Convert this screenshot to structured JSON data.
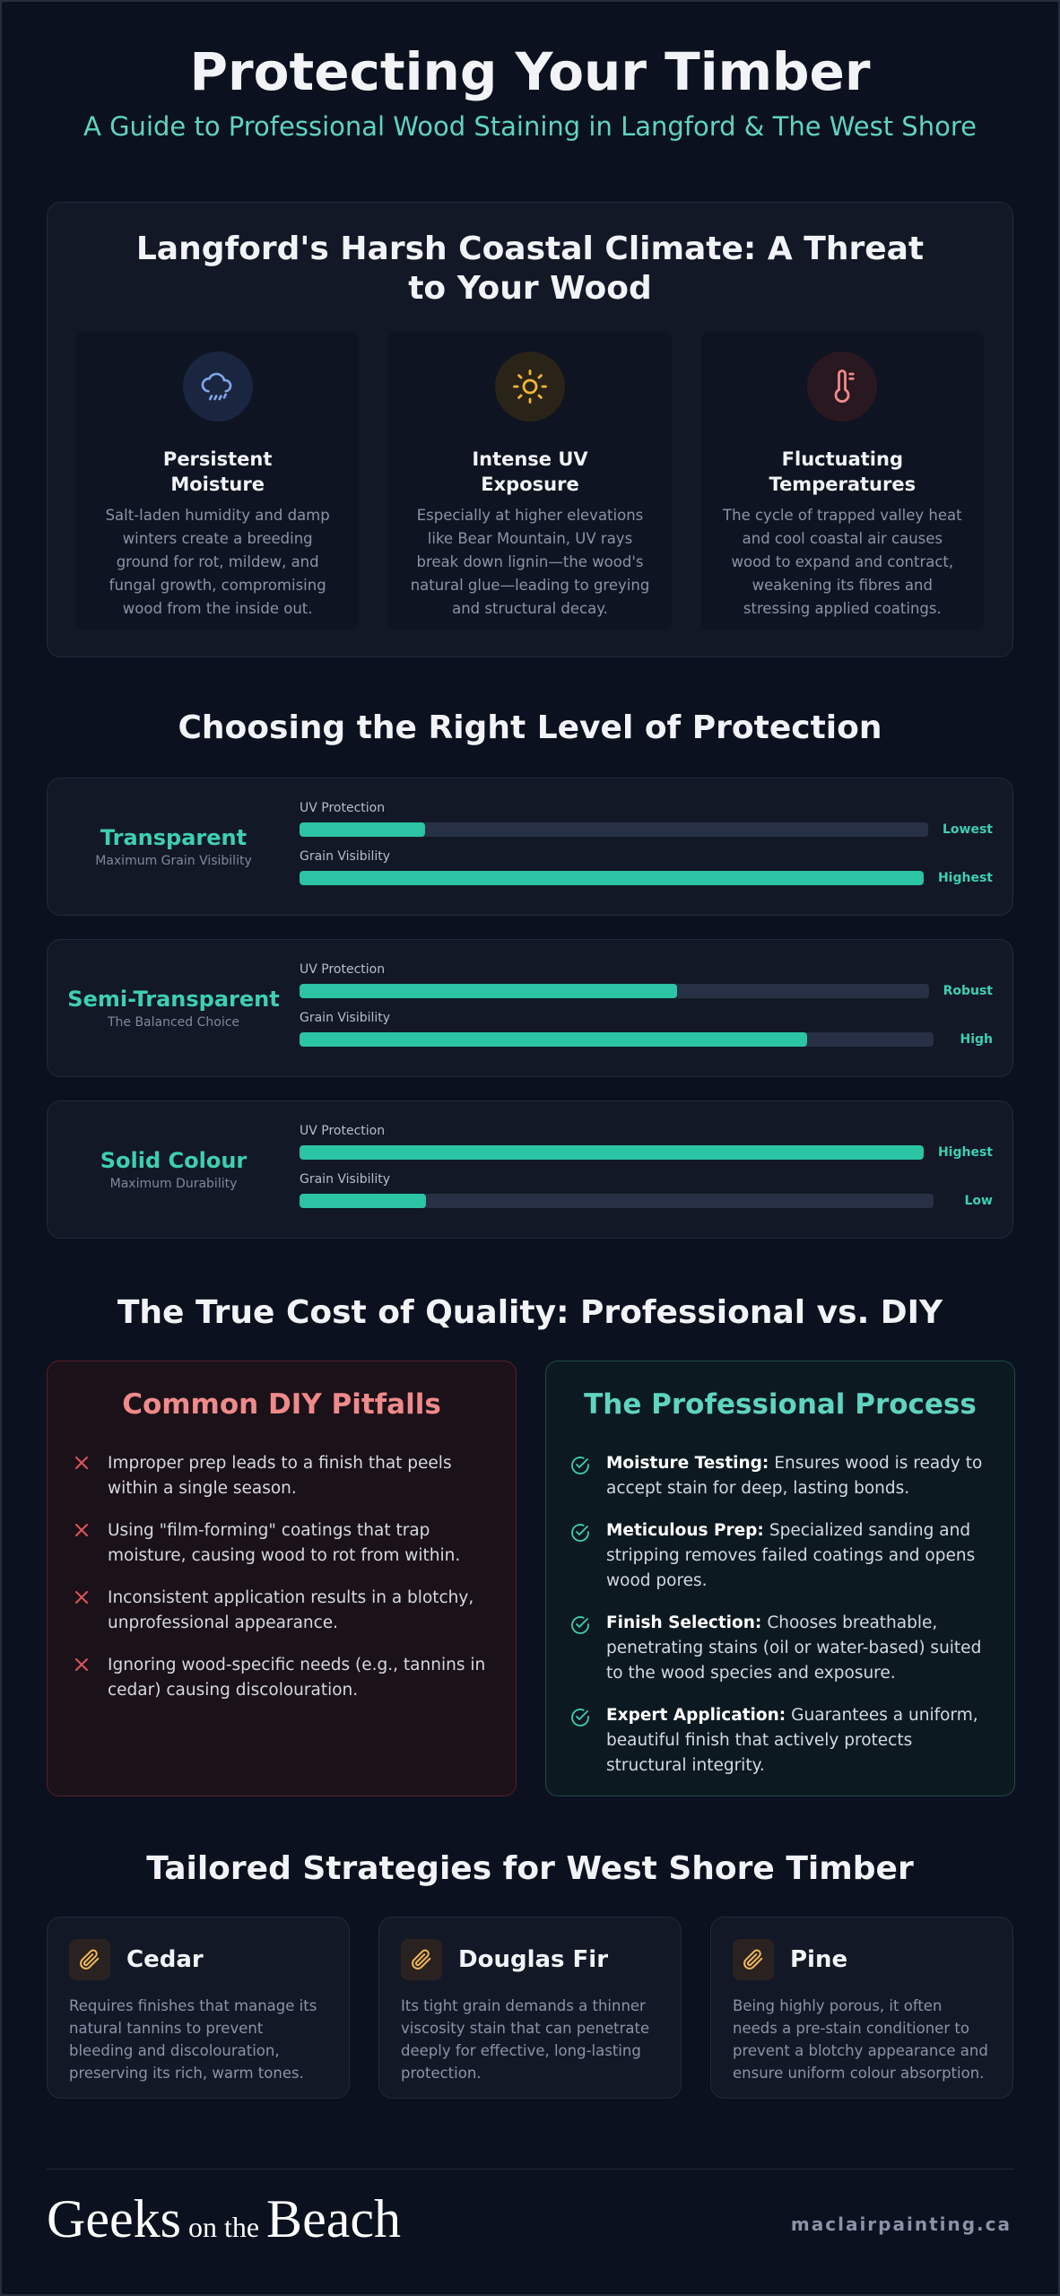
{
  "header": {
    "title": "Protecting Your Timber",
    "subtitle": "A Guide to Professional Wood Staining in Langford & The West Shore"
  },
  "climate": {
    "title": "Langford's Harsh Coastal Climate: A Threat to Your Wood",
    "cards": [
      {
        "title": "Persistent Moisture",
        "text": "Salt-laden humidity and damp winters create a breeding ground for rot, mildew, and fungal growth, compromising wood from the inside out."
      },
      {
        "title": "Intense UV Exposure",
        "text": "Especially at higher elevations like Bear Mountain, UV rays break down lignin—the wood's natural glue—leading to greying and structural decay."
      },
      {
        "title": "Fluctuating Temperatures",
        "text": "The cycle of trapped valley heat and cool coastal air causes wood to expand and contract, weakening its fibres and stressing applied coatings."
      }
    ]
  },
  "protection": {
    "title": "Choosing the Right Level of Protection",
    "options": [
      {
        "name": "Transparent",
        "subtitle": "Maximum Grain Visibility",
        "metrics": [
          {
            "label": "UV Protection",
            "rating": "Lowest",
            "value": 20
          },
          {
            "label": "Grain Visibility",
            "rating": "Highest",
            "value": 100
          }
        ]
      },
      {
        "name": "Semi-Transparent",
        "subtitle": "The Balanced Choice",
        "metrics": [
          {
            "label": "UV Protection",
            "rating": "Robust",
            "value": 60
          },
          {
            "label": "Grain Visibility",
            "rating": "High",
            "value": 80
          }
        ]
      },
      {
        "name": "Solid Colour",
        "subtitle": "Maximum Durability",
        "metrics": [
          {
            "label": "UV Protection",
            "rating": "Highest",
            "value": 100
          },
          {
            "label": "Grain Visibility",
            "rating": "Low",
            "value": 20
          }
        ]
      }
    ]
  },
  "comparison": {
    "title": "The True Cost of Quality: Professional vs. DIY",
    "diy": {
      "title": "Common DIY Pitfalls",
      "items": [
        "Improper prep leads to a finish that peels within a single season.",
        "Using \"film-forming\" coatings that trap moisture, causing wood to rot from within.",
        "Inconsistent application results in a blotchy, unprofessional appearance.",
        "Ignoring wood-specific needs (e.g., tannins in cedar) causing discolouration."
      ]
    },
    "pro": {
      "title": "The Professional Process",
      "items": [
        {
          "lead": "Moisture Testing:",
          "text": "Ensures wood is ready to accept stain for deep, lasting bonds."
        },
        {
          "lead": "Meticulous Prep:",
          "text": "Specialized sanding and stripping removes failed coatings and opens wood pores."
        },
        {
          "lead": "Finish Selection:",
          "text": "Chooses breathable, penetrating stains (oil or water-based) suited to the wood species and exposure."
        },
        {
          "lead": "Expert Application:",
          "text": "Guarantees a uniform, beautiful finish that actively protects structural integrity."
        }
      ]
    }
  },
  "strategies": {
    "title": "Tailored Strategies for West Shore Timber",
    "woods": [
      {
        "name": "Cedar",
        "text": "Requires finishes that manage its natural tannins to prevent bleeding and discolouration, preserving its rich, warm tones."
      },
      {
        "name": "Douglas Fir",
        "text": "Its tight grain demands a thinner viscosity stain that can penetrate deeply for effective, long-lasting protection."
      },
      {
        "name": "Pine",
        "text": "Being highly porous, it often needs a pre-stain conditioner to prevent a blotchy appearance and ensure uniform colour absorption."
      }
    ]
  },
  "footer": {
    "logo": [
      "Geeks",
      "on the",
      "Beach"
    ],
    "url": "maclairpainting.ca"
  }
}
